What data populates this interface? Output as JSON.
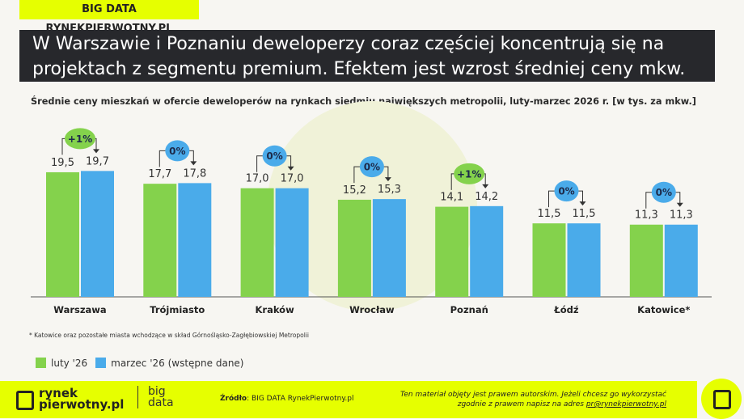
{
  "tag": "BIG DATA RYNEKPIERWOTNY.PL",
  "title_line1": "W Warszawie i Poznaniu deweloperzy coraz częściej koncentrują się na",
  "title_line2": "projektach z segmentu premium. Efektem jest wzrost średniej ceny mkw.",
  "chart_data": {
    "type": "bar",
    "title": "Średnie ceny mieszkań w ofercie deweloperów na rynkach siedmiu największych metropolii, luty-marzec 2026 r. [w tys. za mkw.]",
    "categories": [
      "Warszawa",
      "Trójmiasto",
      "Kraków",
      "Wrocław",
      "Poznań",
      "Łódź",
      "Katowice*"
    ],
    "series": [
      {
        "name": "luty '26",
        "color": "#84d24c",
        "values": [
          19.5,
          17.7,
          17.0,
          15.2,
          14.1,
          11.5,
          11.3
        ],
        "labels": [
          "19,5",
          "17,7",
          "17,0",
          "15,2",
          "14,1",
          "11,5",
          "11,3"
        ]
      },
      {
        "name": "marzec '26 (wstępne dane)",
        "color": "#4aabea",
        "values": [
          19.7,
          17.8,
          17.0,
          15.3,
          14.2,
          11.5,
          11.3
        ],
        "labels": [
          "19,7",
          "17,8",
          "17,0",
          "15,3",
          "14,2",
          "11,5",
          "11,3"
        ]
      }
    ],
    "changes": [
      "+1%",
      "0%",
      "0%",
      "0%",
      "+1%",
      "0%",
      "0%"
    ],
    "legend": "bottom-left"
  },
  "note": "* Katowice oraz pozostałe miasta wchodzące w skład Górnośląsko-Zagłębiowskiej Metropolii",
  "footer": {
    "logo1": "rynek",
    "logo2": "pierwotny.pl",
    "big1": "big",
    "big2": "data",
    "source_label": "Źródło",
    "source": ": BIG DATA RynekPierwotny.pl",
    "copy1": "Ten materiał objęty jest prawem autorskim. Jeżeli chcesz go wykorzystać",
    "copy2": "zgodnie z prawem napisz na adres ",
    "email": "pr@rynekpierwotny.pl"
  }
}
